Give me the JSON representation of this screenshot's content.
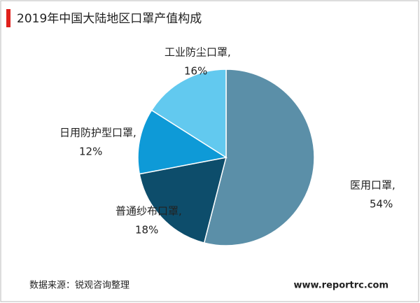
{
  "chart_data": {
    "type": "pie",
    "title": "2019年中国大陆地区口罩产值构成",
    "categories": [
      "医用口罩,",
      "普通纱布口罩,",
      "日用防护型口罩,",
      "工业防尘口罩,"
    ],
    "values": [
      54,
      18,
      12,
      16
    ],
    "value_labels": [
      "54%",
      "18%",
      "12%",
      "16%"
    ],
    "colors": [
      "#5b8fa8",
      "#0d4d6b",
      "#0e9ad7",
      "#62c9ef"
    ],
    "source": "数据来源：锐观咨询整理",
    "website": "www.reportrc.com"
  }
}
